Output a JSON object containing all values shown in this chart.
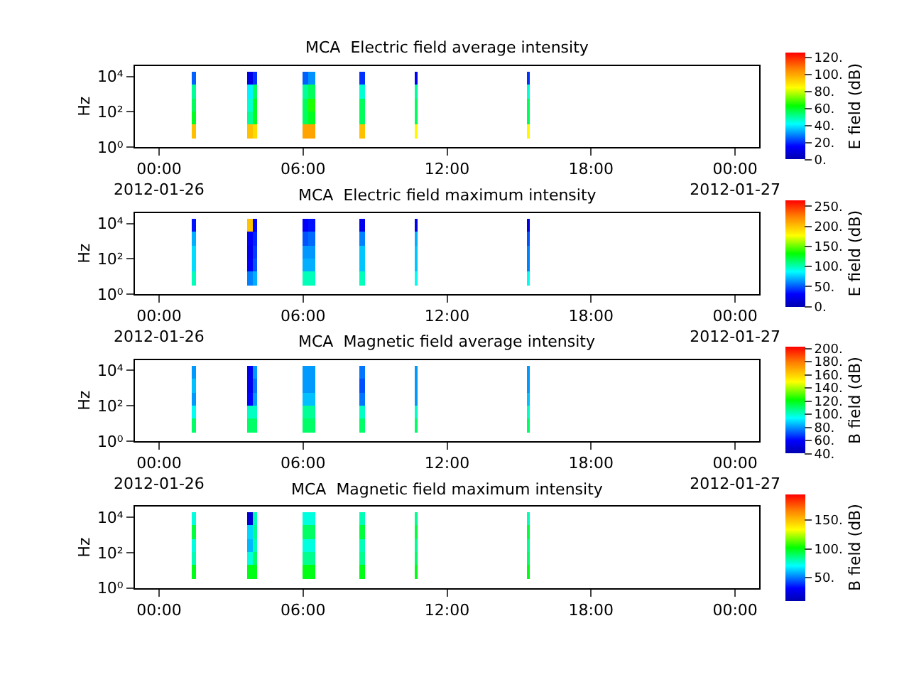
{
  "chart_data": [
    {
      "type": "heatmap",
      "title": "MCA  Electric field average intensity",
      "ylabel": "Hz",
      "clabel": "E field (dB)",
      "log": "y",
      "x": [
        "2012-01-26T01:17",
        "2012-01-26T01:28",
        "2012-01-26T01:38",
        "2012-01-26T03:36",
        "2012-01-26T03:48",
        "2012-01-26T04:00",
        "2012-01-26T04:12",
        "2012-01-26T05:53",
        "2012-01-26T06:07",
        "2012-01-26T06:22",
        "2012-01-26T06:36",
        "2012-01-26T08:16",
        "2012-01-26T08:29",
        "2012-01-26T08:43",
        "2012-01-26T10:39",
        "2012-01-26T10:45",
        "2012-01-26T10:51",
        "2012-01-26T15:19",
        "2012-01-26T15:25",
        "2012-01-26T15:31"
      ],
      "y": [
        7900,
        1400,
        250,
        45,
        8
      ],
      "cells": [
        [
          null,
          25,
          null,
          null,
          10,
          20,
          null,
          null,
          25,
          30,
          null,
          null,
          20,
          null,
          null,
          15,
          null,
          null,
          20,
          null
        ],
        [
          null,
          50,
          null,
          null,
          40,
          55,
          null,
          null,
          50,
          55,
          null,
          null,
          45,
          null,
          null,
          50,
          null,
          null,
          45,
          null
        ],
        [
          null,
          55,
          null,
          null,
          45,
          60,
          null,
          null,
          55,
          65,
          null,
          null,
          55,
          null,
          null,
          55,
          null,
          null,
          55,
          null
        ],
        [
          null,
          60,
          null,
          null,
          50,
          60,
          null,
          null,
          55,
          60,
          null,
          null,
          55,
          null,
          null,
          55,
          null,
          null,
          55,
          null
        ],
        [
          null,
          95,
          null,
          null,
          95,
          90,
          null,
          null,
          100,
          100,
          null,
          null,
          95,
          null,
          null,
          85,
          null,
          null,
          85,
          null
        ]
      ],
      "clim": [
        0,
        125
      ],
      "cticks": [
        {
          "value": 0,
          "label": "0."
        },
        {
          "value": 20,
          "label": "20."
        },
        {
          "value": 40,
          "label": "40."
        },
        {
          "value": 60,
          "label": "60."
        },
        {
          "value": 80,
          "label": "80."
        },
        {
          "value": 100,
          "label": "100."
        },
        {
          "value": 120,
          "label": "120."
        }
      ],
      "xlim": [
        "2012-01-25T23:00",
        "2012-01-27T01:00"
      ],
      "xticks": [
        {
          "value": "2012-01-26T00:00",
          "label": "00:00\n2012-01-26"
        },
        {
          "value": "2012-01-26T06:00",
          "label": "06:00"
        },
        {
          "value": "2012-01-26T12:00",
          "label": "12:00"
        },
        {
          "value": "2012-01-26T18:00",
          "label": "18:00"
        },
        {
          "value": "2012-01-27T00:00",
          "label": "00:00\n2012-01-27"
        }
      ],
      "ylim": [
        1,
        40000
      ],
      "yticks": [
        {
          "value": 1,
          "label": "10⁰"
        },
        {
          "value": 100,
          "label": "10²"
        },
        {
          "value": 10000,
          "label": "10⁴"
        }
      ]
    },
    {
      "type": "heatmap",
      "title": "MCA  Electric field maximum intensity",
      "ylabel": "Hz",
      "clabel": "E field (dB)",
      "log": "y",
      "x": [
        "2012-01-26T01:17",
        "2012-01-26T01:28",
        "2012-01-26T01:38",
        "2012-01-26T03:36",
        "2012-01-26T03:48",
        "2012-01-26T04:00",
        "2012-01-26T04:12",
        "2012-01-26T05:53",
        "2012-01-26T06:07",
        "2012-01-26T06:22",
        "2012-01-26T06:36",
        "2012-01-26T08:16",
        "2012-01-26T08:29",
        "2012-01-26T08:43",
        "2012-01-26T10:39",
        "2012-01-26T10:45",
        "2012-01-26T10:51",
        "2012-01-26T15:19",
        "2012-01-26T15:25",
        "2012-01-26T15:31"
      ],
      "y": [
        7900,
        1400,
        250,
        45,
        8
      ],
      "cells": [
        [
          null,
          35,
          null,
          null,
          200,
          30,
          null,
          null,
          30,
          35,
          null,
          null,
          25,
          null,
          null,
          25,
          null,
          null,
          20,
          null
        ],
        [
          null,
          70,
          null,
          null,
          30,
          40,
          null,
          null,
          50,
          55,
          null,
          null,
          60,
          null,
          null,
          70,
          null,
          null,
          50,
          null
        ],
        [
          null,
          80,
          null,
          null,
          25,
          45,
          null,
          null,
          65,
          65,
          null,
          null,
          75,
          null,
          null,
          75,
          null,
          null,
          60,
          null
        ],
        [
          null,
          80,
          null,
          null,
          30,
          50,
          null,
          null,
          70,
          70,
          null,
          null,
          75,
          null,
          null,
          75,
          null,
          null,
          60,
          null
        ],
        [
          null,
          100,
          null,
          null,
          60,
          70,
          null,
          null,
          100,
          100,
          null,
          null,
          100,
          null,
          null,
          90,
          null,
          null,
          90,
          null
        ]
      ],
      "clim": [
        0,
        265
      ],
      "cticks": [
        {
          "value": 0,
          "label": "0."
        },
        {
          "value": 50,
          "label": "50."
        },
        {
          "value": 100,
          "label": "100."
        },
        {
          "value": 150,
          "label": "150."
        },
        {
          "value": 200,
          "label": "200."
        },
        {
          "value": 250,
          "label": "250."
        }
      ],
      "xlim": [
        "2012-01-25T23:00",
        "2012-01-27T01:00"
      ],
      "xticks": [
        {
          "value": "2012-01-26T00:00",
          "label": "00:00\n2012-01-26"
        },
        {
          "value": "2012-01-26T06:00",
          "label": "06:00"
        },
        {
          "value": "2012-01-26T12:00",
          "label": "12:00"
        },
        {
          "value": "2012-01-26T18:00",
          "label": "18:00"
        },
        {
          "value": "2012-01-27T00:00",
          "label": "00:00\n2012-01-27"
        }
      ],
      "ylim": [
        1,
        40000
      ],
      "yticks": [
        {
          "value": 1,
          "label": "10⁰"
        },
        {
          "value": 100,
          "label": "10²"
        },
        {
          "value": 10000,
          "label": "10⁴"
        }
      ]
    },
    {
      "type": "heatmap",
      "title": "MCA  Magnetic field average intensity",
      "ylabel": "Hz",
      "clabel": "B field (dB)",
      "log": "y",
      "x": [
        "2012-01-26T01:17",
        "2012-01-26T01:28",
        "2012-01-26T01:38",
        "2012-01-26T03:36",
        "2012-01-26T03:48",
        "2012-01-26T04:00",
        "2012-01-26T04:12",
        "2012-01-26T05:53",
        "2012-01-26T06:07",
        "2012-01-26T06:22",
        "2012-01-26T06:36",
        "2012-01-26T08:16",
        "2012-01-26T08:29",
        "2012-01-26T08:43",
        "2012-01-26T10:39",
        "2012-01-26T10:45",
        "2012-01-26T10:51",
        "2012-01-26T15:19",
        "2012-01-26T15:25",
        "2012-01-26T15:31"
      ],
      "y": [
        7900,
        1400,
        250,
        45,
        8
      ],
      "cells": [
        [
          null,
          80,
          null,
          null,
          55,
          80,
          null,
          null,
          80,
          80,
          null,
          null,
          75,
          null,
          null,
          80,
          null,
          null,
          80,
          null
        ],
        [
          null,
          85,
          null,
          null,
          55,
          75,
          null,
          null,
          80,
          80,
          null,
          null,
          70,
          null,
          null,
          80,
          null,
          null,
          80,
          null
        ],
        [
          null,
          80,
          null,
          null,
          60,
          80,
          null,
          null,
          85,
          85,
          null,
          null,
          75,
          null,
          null,
          80,
          null,
          null,
          85,
          null
        ],
        [
          null,
          95,
          null,
          null,
          100,
          100,
          null,
          null,
          105,
          105,
          null,
          null,
          100,
          null,
          null,
          100,
          null,
          null,
          100,
          null
        ],
        [
          null,
          110,
          null,
          null,
          110,
          110,
          null,
          null,
          110,
          110,
          null,
          null,
          110,
          null,
          null,
          110,
          null,
          null,
          110,
          null
        ]
      ],
      "clim": [
        40,
        202
      ],
      "cticks": [
        {
          "value": 40,
          "label": "40."
        },
        {
          "value": 60,
          "label": "60."
        },
        {
          "value": 80,
          "label": "80."
        },
        {
          "value": 100,
          "label": "100."
        },
        {
          "value": 120,
          "label": "120."
        },
        {
          "value": 140,
          "label": "140."
        },
        {
          "value": 160,
          "label": "160."
        },
        {
          "value": 180,
          "label": "180."
        },
        {
          "value": 200,
          "label": "200."
        }
      ],
      "xlim": [
        "2012-01-25T23:00",
        "2012-01-27T01:00"
      ],
      "xticks": [
        {
          "value": "2012-01-26T00:00",
          "label": "00:00\n2012-01-26"
        },
        {
          "value": "2012-01-26T06:00",
          "label": "06:00"
        },
        {
          "value": "2012-01-26T12:00",
          "label": "12:00"
        },
        {
          "value": "2012-01-26T18:00",
          "label": "18:00"
        },
        {
          "value": "2012-01-27T00:00",
          "label": "00:00\n2012-01-27"
        }
      ],
      "ylim": [
        1,
        40000
      ],
      "yticks": [
        {
          "value": 1,
          "label": "10⁰"
        },
        {
          "value": 100,
          "label": "10²"
        },
        {
          "value": 10000,
          "label": "10⁴"
        }
      ]
    },
    {
      "type": "heatmap",
      "title": "MCA  Magnetic field maximum intensity",
      "ylabel": "Hz",
      "clabel": "B field (dB)",
      "log": "y",
      "x": [
        "2012-01-26T01:17",
        "2012-01-26T01:28",
        "2012-01-26T01:38",
        "2012-01-26T03:36",
        "2012-01-26T03:48",
        "2012-01-26T04:00",
        "2012-01-26T04:12",
        "2012-01-26T05:53",
        "2012-01-26T06:07",
        "2012-01-26T06:22",
        "2012-01-26T06:36",
        "2012-01-26T08:16",
        "2012-01-26T08:29",
        "2012-01-26T08:43",
        "2012-01-26T10:39",
        "2012-01-26T10:45",
        "2012-01-26T10:51",
        "2012-01-26T15:19",
        "2012-01-26T15:25",
        "2012-01-26T15:31"
      ],
      "y": [
        7900,
        1400,
        250,
        45,
        8
      ],
      "cells": [
        [
          null,
          75,
          null,
          null,
          20,
          80,
          null,
          null,
          75,
          75,
          null,
          null,
          80,
          null,
          null,
          85,
          null,
          null,
          80,
          null
        ],
        [
          null,
          95,
          null,
          null,
          65,
          85,
          null,
          null,
          90,
          90,
          null,
          null,
          95,
          null,
          null,
          95,
          null,
          null,
          95,
          null
        ],
        [
          null,
          75,
          null,
          null,
          60,
          80,
          null,
          null,
          75,
          75,
          null,
          null,
          80,
          null,
          null,
          85,
          null,
          null,
          85,
          null
        ],
        [
          null,
          80,
          null,
          null,
          75,
          90,
          null,
          null,
          85,
          85,
          null,
          null,
          85,
          null,
          null,
          90,
          null,
          null,
          90,
          null
        ],
        [
          null,
          100,
          null,
          null,
          100,
          100,
          null,
          null,
          100,
          100,
          null,
          null,
          100,
          null,
          null,
          100,
          null,
          null,
          100,
          null
        ]
      ],
      "clim": [
        10,
        195
      ],
      "cticks": [
        {
          "value": 50,
          "label": "50."
        },
        {
          "value": 100,
          "label": "100."
        },
        {
          "value": 150,
          "label": "150."
        }
      ],
      "xlim": [
        "2012-01-25T23:00",
        "2012-01-27T01:00"
      ],
      "xticks": [
        {
          "value": "2012-01-26T00:00",
          "label": "00:00"
        },
        {
          "value": "2012-01-26T06:00",
          "label": "06:00"
        },
        {
          "value": "2012-01-26T12:00",
          "label": "12:00"
        },
        {
          "value": "2012-01-26T18:00",
          "label": "18:00"
        },
        {
          "value": "2012-01-27T00:00",
          "label": "00:00"
        }
      ],
      "ylim": [
        1,
        40000
      ],
      "yticks": [
        {
          "value": 1,
          "label": "10⁰"
        },
        {
          "value": 100,
          "label": "10²"
        },
        {
          "value": 10000,
          "label": "10⁴"
        }
      ]
    }
  ]
}
